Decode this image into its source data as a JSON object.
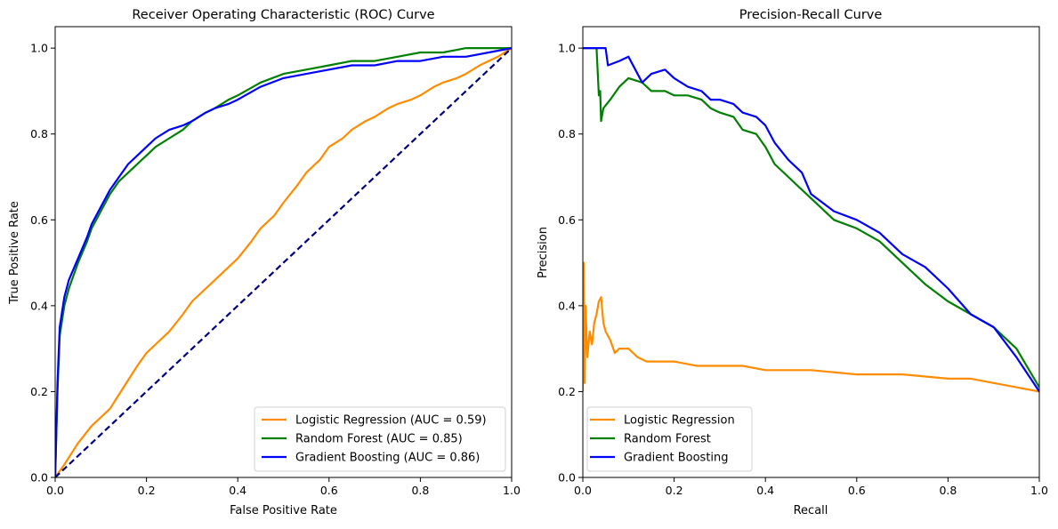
{
  "chart_data": [
    {
      "type": "line",
      "title": "Receiver Operating Characteristic (ROC) Curve",
      "xlabel": "False Positive Rate",
      "ylabel": "True Positive Rate",
      "xlim": [
        0,
        1
      ],
      "ylim": [
        0,
        1.05
      ],
      "xticks": [
        "0.0",
        "0.2",
        "0.4",
        "0.6",
        "0.8",
        "1.0"
      ],
      "yticks": [
        "0.0",
        "0.2",
        "0.4",
        "0.6",
        "0.8",
        "1.0"
      ],
      "grid": false,
      "legend_position": "lower-right",
      "series": [
        {
          "name": "Logistic Regression (AUC = 0.59)",
          "color": "#ff8c00",
          "x": [
            0.0,
            0.02,
            0.05,
            0.08,
            0.1,
            0.12,
            0.15,
            0.18,
            0.2,
            0.23,
            0.25,
            0.28,
            0.3,
            0.33,
            0.35,
            0.38,
            0.4,
            0.43,
            0.45,
            0.48,
            0.5,
            0.53,
            0.55,
            0.58,
            0.6,
            0.63,
            0.65,
            0.68,
            0.7,
            0.73,
            0.75,
            0.78,
            0.8,
            0.83,
            0.85,
            0.88,
            0.9,
            0.93,
            0.95,
            0.97,
            1.0
          ],
          "y": [
            0.0,
            0.03,
            0.08,
            0.12,
            0.14,
            0.16,
            0.21,
            0.26,
            0.29,
            0.32,
            0.34,
            0.38,
            0.41,
            0.44,
            0.46,
            0.49,
            0.51,
            0.55,
            0.58,
            0.61,
            0.64,
            0.68,
            0.71,
            0.74,
            0.77,
            0.79,
            0.81,
            0.83,
            0.84,
            0.86,
            0.87,
            0.88,
            0.89,
            0.91,
            0.92,
            0.93,
            0.94,
            0.96,
            0.97,
            0.98,
            1.0
          ]
        },
        {
          "name": "Random Forest (AUC = 0.85)",
          "color": "#008000",
          "x": [
            0.0,
            0.005,
            0.01,
            0.02,
            0.03,
            0.05,
            0.07,
            0.08,
            0.1,
            0.12,
            0.14,
            0.16,
            0.18,
            0.2,
            0.22,
            0.25,
            0.28,
            0.3,
            0.33,
            0.35,
            0.38,
            0.4,
            0.45,
            0.5,
            0.55,
            0.6,
            0.65,
            0.7,
            0.75,
            0.8,
            0.85,
            0.9,
            0.95,
            1.0
          ],
          "y": [
            0.0,
            0.2,
            0.33,
            0.4,
            0.44,
            0.5,
            0.55,
            0.58,
            0.62,
            0.66,
            0.69,
            0.71,
            0.73,
            0.75,
            0.77,
            0.79,
            0.81,
            0.83,
            0.85,
            0.86,
            0.88,
            0.89,
            0.92,
            0.94,
            0.95,
            0.96,
            0.97,
            0.97,
            0.98,
            0.99,
            0.99,
            1.0,
            1.0,
            1.0
          ]
        },
        {
          "name": "Gradient Boosting (AUC = 0.86)",
          "color": "#0000ff",
          "x": [
            0.0,
            0.005,
            0.01,
            0.02,
            0.03,
            0.05,
            0.07,
            0.08,
            0.1,
            0.12,
            0.14,
            0.16,
            0.18,
            0.2,
            0.22,
            0.25,
            0.28,
            0.3,
            0.33,
            0.35,
            0.38,
            0.4,
            0.45,
            0.5,
            0.55,
            0.6,
            0.65,
            0.7,
            0.75,
            0.8,
            0.85,
            0.9,
            0.95,
            1.0
          ],
          "y": [
            0.0,
            0.22,
            0.35,
            0.42,
            0.46,
            0.51,
            0.56,
            0.59,
            0.63,
            0.67,
            0.7,
            0.73,
            0.75,
            0.77,
            0.79,
            0.81,
            0.82,
            0.83,
            0.85,
            0.86,
            0.87,
            0.88,
            0.91,
            0.93,
            0.94,
            0.95,
            0.96,
            0.96,
            0.97,
            0.97,
            0.98,
            0.98,
            0.99,
            1.0
          ]
        },
        {
          "name": "",
          "color": "#000080",
          "dashed": true,
          "x": [
            0,
            1
          ],
          "y": [
            0,
            1
          ]
        }
      ],
      "legend": [
        "Logistic Regression (AUC = 0.59)",
        "Random Forest (AUC = 0.85)",
        "Gradient Boosting (AUC = 0.86)"
      ]
    },
    {
      "type": "line",
      "title": "Precision-Recall Curve",
      "xlabel": "Recall",
      "ylabel": "Precision",
      "xlim": [
        0,
        1
      ],
      "ylim": [
        0,
        1.05
      ],
      "xticks": [
        "0.0",
        "0.2",
        "0.4",
        "0.6",
        "0.8",
        "1.0"
      ],
      "yticks": [
        "0.0",
        "0.2",
        "0.4",
        "0.6",
        "0.8",
        "1.0"
      ],
      "grid": false,
      "legend_position": "lower-left",
      "series": [
        {
          "name": "Logistic Regression",
          "color": "#ff8c00",
          "x": [
            0.0,
            0.002,
            0.004,
            0.006,
            0.01,
            0.015,
            0.02,
            0.025,
            0.03,
            0.035,
            0.04,
            0.045,
            0.05,
            0.06,
            0.07,
            0.08,
            0.1,
            0.12,
            0.14,
            0.16,
            0.2,
            0.25,
            0.3,
            0.35,
            0.4,
            0.5,
            0.6,
            0.7,
            0.8,
            0.85,
            0.9,
            0.95,
            1.0
          ],
          "y": [
            0.2,
            0.5,
            0.22,
            0.4,
            0.28,
            0.34,
            0.31,
            0.36,
            0.38,
            0.41,
            0.42,
            0.36,
            0.34,
            0.32,
            0.29,
            0.3,
            0.3,
            0.28,
            0.27,
            0.27,
            0.27,
            0.26,
            0.26,
            0.26,
            0.25,
            0.25,
            0.24,
            0.24,
            0.23,
            0.23,
            0.22,
            0.21,
            0.2
          ]
        },
        {
          "name": "Random Forest",
          "color": "#008000",
          "x": [
            0.0,
            0.03,
            0.035,
            0.038,
            0.04,
            0.045,
            0.06,
            0.08,
            0.1,
            0.13,
            0.15,
            0.18,
            0.2,
            0.23,
            0.26,
            0.28,
            0.3,
            0.33,
            0.35,
            0.38,
            0.4,
            0.42,
            0.45,
            0.48,
            0.5,
            0.55,
            0.6,
            0.65,
            0.7,
            0.75,
            0.8,
            0.85,
            0.9,
            0.95,
            1.0
          ],
          "y": [
            1.0,
            1.0,
            0.89,
            0.9,
            0.83,
            0.86,
            0.88,
            0.91,
            0.93,
            0.92,
            0.9,
            0.9,
            0.89,
            0.89,
            0.88,
            0.86,
            0.85,
            0.84,
            0.81,
            0.8,
            0.77,
            0.73,
            0.7,
            0.67,
            0.65,
            0.6,
            0.58,
            0.55,
            0.5,
            0.45,
            0.41,
            0.38,
            0.35,
            0.3,
            0.21
          ]
        },
        {
          "name": "Gradient Boosting",
          "color": "#0000ff",
          "x": [
            0.0,
            0.05,
            0.055,
            0.08,
            0.1,
            0.13,
            0.15,
            0.18,
            0.2,
            0.23,
            0.26,
            0.28,
            0.3,
            0.33,
            0.35,
            0.38,
            0.4,
            0.42,
            0.45,
            0.48,
            0.5,
            0.55,
            0.6,
            0.65,
            0.7,
            0.75,
            0.8,
            0.85,
            0.9,
            0.95,
            1.0
          ],
          "y": [
            1.0,
            1.0,
            0.96,
            0.97,
            0.98,
            0.92,
            0.94,
            0.95,
            0.93,
            0.91,
            0.9,
            0.88,
            0.88,
            0.87,
            0.85,
            0.84,
            0.82,
            0.78,
            0.74,
            0.71,
            0.66,
            0.62,
            0.6,
            0.57,
            0.52,
            0.49,
            0.44,
            0.38,
            0.35,
            0.28,
            0.2
          ]
        }
      ],
      "legend": [
        "Logistic Regression",
        "Random Forest",
        "Gradient Boosting"
      ]
    }
  ]
}
